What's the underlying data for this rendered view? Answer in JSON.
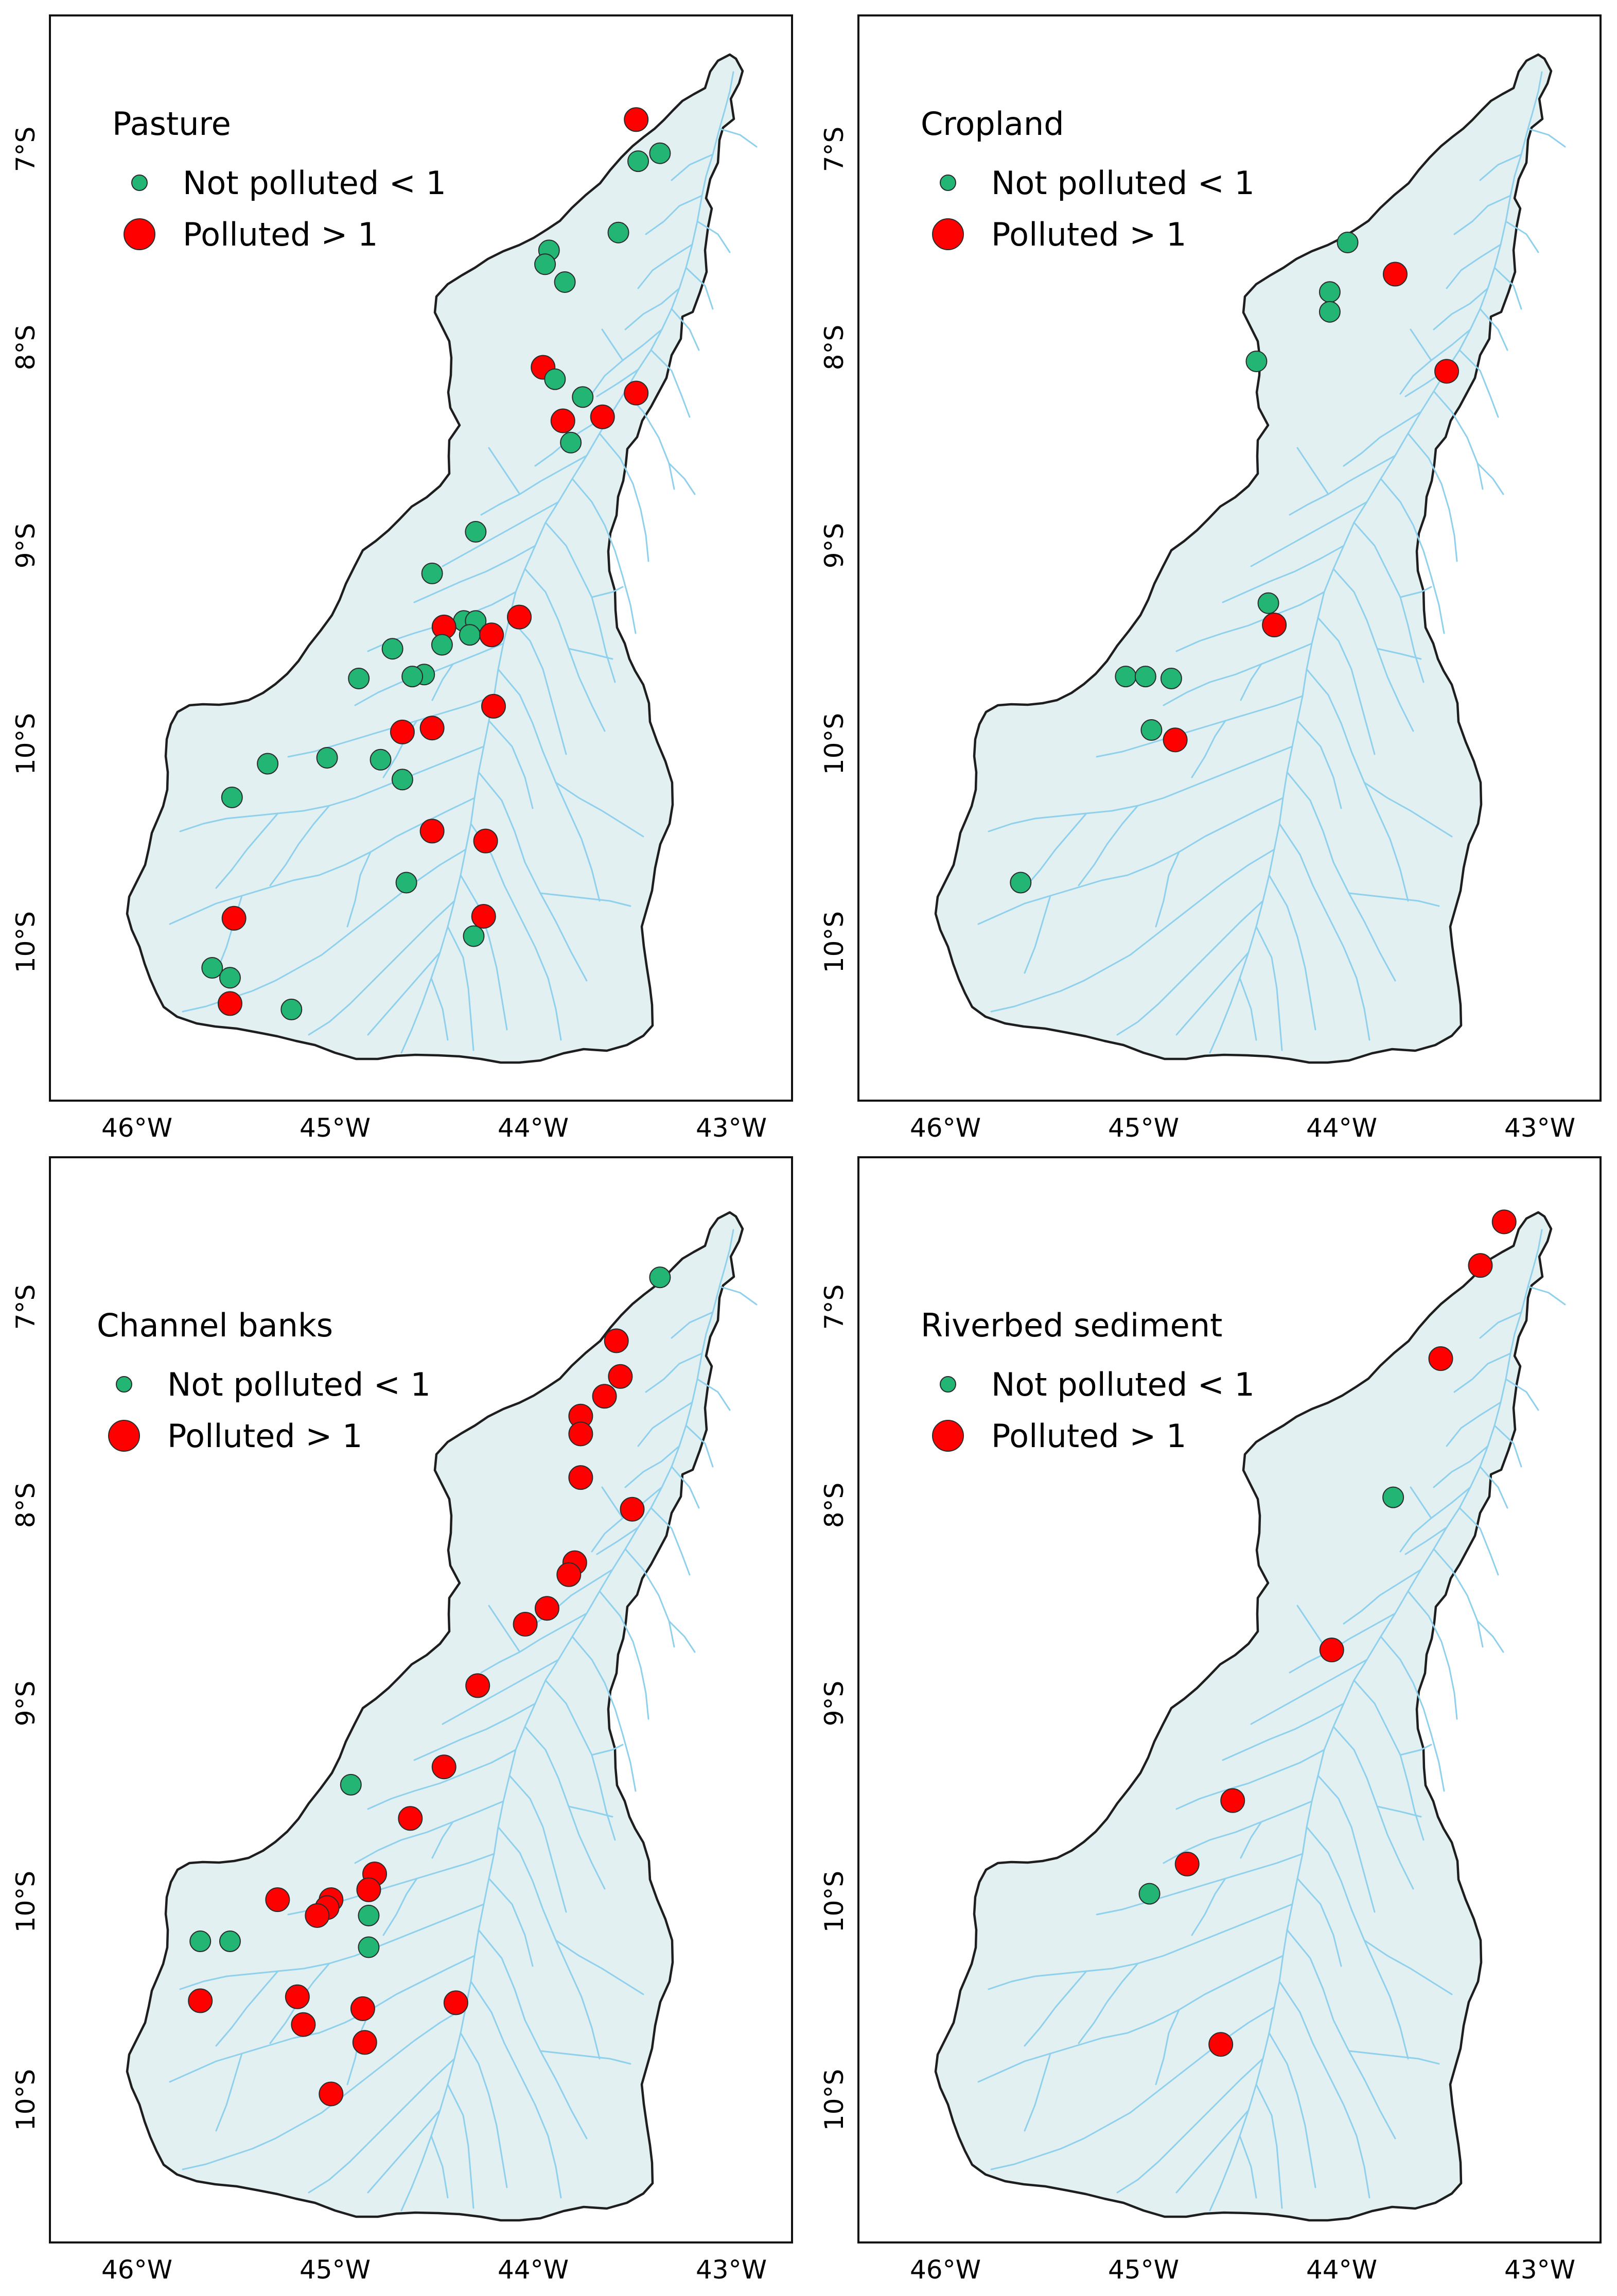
{
  "axis_labels": {
    "lon": [
      "46°W",
      "45°W",
      "44°W",
      "43°W"
    ],
    "lat": [
      "7°S",
      "8°S",
      "9°S",
      "10°S",
      "10°S"
    ]
  },
  "legend": {
    "not_polluted": "Not polluted < 1",
    "polluted": "Polluted > 1"
  },
  "colors": {
    "not_polluted": "#22b573",
    "polluted": "#ff0000",
    "basin_fill": "#e2f0f2",
    "river": "#8fd0ec",
    "outline": "#1e1e1e"
  },
  "panels": [
    {
      "title": "Pasture",
      "sites": [
        {
          "lon": -43.48,
          "lat": 6.85,
          "status": "polluted"
        },
        {
          "lon": -43.47,
          "lat": 7.06,
          "status": "not_polluted"
        },
        {
          "lon": -43.36,
          "lat": 7.02,
          "status": "not_polluted"
        },
        {
          "lon": -43.57,
          "lat": 7.42,
          "status": "not_polluted"
        },
        {
          "lon": -43.92,
          "lat": 7.51,
          "status": "not_polluted"
        },
        {
          "lon": -43.94,
          "lat": 7.58,
          "status": "not_polluted"
        },
        {
          "lon": -43.84,
          "lat": 7.67,
          "status": "not_polluted"
        },
        {
          "lon": -43.95,
          "lat": 8.1,
          "status": "polluted"
        },
        {
          "lon": -43.89,
          "lat": 8.16,
          "status": "not_polluted"
        },
        {
          "lon": -43.75,
          "lat": 8.25,
          "status": "not_polluted"
        },
        {
          "lon": -43.48,
          "lat": 8.23,
          "status": "polluted"
        },
        {
          "lon": -43.85,
          "lat": 8.37,
          "status": "polluted"
        },
        {
          "lon": -43.65,
          "lat": 8.35,
          "status": "polluted"
        },
        {
          "lon": -43.81,
          "lat": 8.48,
          "status": "not_polluted"
        },
        {
          "lon": -44.29,
          "lat": 8.93,
          "status": "not_polluted"
        },
        {
          "lon": -44.51,
          "lat": 9.14,
          "status": "not_polluted"
        },
        {
          "lon": -44.35,
          "lat": 9.38,
          "status": "not_polluted"
        },
        {
          "lon": -44.29,
          "lat": 9.38,
          "status": "not_polluted"
        },
        {
          "lon": -44.45,
          "lat": 9.41,
          "status": "polluted"
        },
        {
          "lon": -44.32,
          "lat": 9.45,
          "status": "not_polluted"
        },
        {
          "lon": -44.21,
          "lat": 9.45,
          "status": "polluted"
        },
        {
          "lon": -44.07,
          "lat": 9.36,
          "status": "polluted"
        },
        {
          "lon": -44.46,
          "lat": 9.5,
          "status": "not_polluted"
        },
        {
          "lon": -44.71,
          "lat": 9.52,
          "status": "not_polluted"
        },
        {
          "lon": -44.55,
          "lat": 9.65,
          "status": "not_polluted"
        },
        {
          "lon": -44.61,
          "lat": 9.66,
          "status": "not_polluted"
        },
        {
          "lon": -44.88,
          "lat": 9.67,
          "status": "not_polluted"
        },
        {
          "lon": -44.2,
          "lat": 9.81,
          "status": "polluted"
        },
        {
          "lon": -44.51,
          "lat": 9.92,
          "status": "polluted"
        },
        {
          "lon": -44.66,
          "lat": 9.94,
          "status": "polluted"
        },
        {
          "lon": -45.04,
          "lat": 10.07,
          "status": "not_polluted"
        },
        {
          "lon": -45.34,
          "lat": 10.1,
          "status": "not_polluted"
        },
        {
          "lon": -44.77,
          "lat": 10.08,
          "status": "not_polluted"
        },
        {
          "lon": -44.66,
          "lat": 10.18,
          "status": "not_polluted"
        },
        {
          "lon": -45.52,
          "lat": 10.27,
          "status": "not_polluted"
        },
        {
          "lon": -44.51,
          "lat": 10.44,
          "status": "polluted"
        },
        {
          "lon": -44.24,
          "lat": 10.49,
          "status": "polluted"
        },
        {
          "lon": -44.64,
          "lat": 10.7,
          "status": "not_polluted"
        },
        {
          "lon": -45.51,
          "lat": 10.88,
          "status": "polluted"
        },
        {
          "lon": -44.25,
          "lat": 10.87,
          "status": "polluted"
        },
        {
          "lon": -44.3,
          "lat": 10.97,
          "status": "not_polluted"
        },
        {
          "lon": -45.62,
          "lat": 11.13,
          "status": "not_polluted"
        },
        {
          "lon": -45.53,
          "lat": 11.18,
          "status": "not_polluted"
        },
        {
          "lon": -45.53,
          "lat": 11.31,
          "status": "polluted"
        },
        {
          "lon": -45.22,
          "lat": 11.34,
          "status": "not_polluted"
        }
      ]
    },
    {
      "title": "Cropland",
      "sites": [
        {
          "lon": -43.97,
          "lat": 7.47,
          "status": "not_polluted"
        },
        {
          "lon": -43.73,
          "lat": 7.63,
          "status": "polluted"
        },
        {
          "lon": -44.06,
          "lat": 7.72,
          "status": "not_polluted"
        },
        {
          "lon": -44.06,
          "lat": 7.82,
          "status": "not_polluted"
        },
        {
          "lon": -44.43,
          "lat": 8.07,
          "status": "not_polluted"
        },
        {
          "lon": -43.47,
          "lat": 8.12,
          "status": "polluted"
        },
        {
          "lon": -44.37,
          "lat": 9.29,
          "status": "not_polluted"
        },
        {
          "lon": -44.34,
          "lat": 9.4,
          "status": "polluted"
        },
        {
          "lon": -45.09,
          "lat": 9.66,
          "status": "not_polluted"
        },
        {
          "lon": -44.99,
          "lat": 9.66,
          "status": "not_polluted"
        },
        {
          "lon": -44.86,
          "lat": 9.67,
          "status": "not_polluted"
        },
        {
          "lon": -44.96,
          "lat": 9.93,
          "status": "not_polluted"
        },
        {
          "lon": -44.84,
          "lat": 9.98,
          "status": "polluted"
        },
        {
          "lon": -45.62,
          "lat": 10.7,
          "status": "not_polluted"
        }
      ]
    },
    {
      "title": "Channel banks",
      "sites": [
        {
          "lon": -43.36,
          "lat": 6.85,
          "status": "not_polluted"
        },
        {
          "lon": -43.58,
          "lat": 7.17,
          "status": "polluted"
        },
        {
          "lon": -43.56,
          "lat": 7.35,
          "status": "polluted"
        },
        {
          "lon": -43.64,
          "lat": 7.45,
          "status": "polluted"
        },
        {
          "lon": -43.76,
          "lat": 7.55,
          "status": "polluted"
        },
        {
          "lon": -43.76,
          "lat": 7.64,
          "status": "polluted"
        },
        {
          "lon": -43.76,
          "lat": 7.86,
          "status": "polluted"
        },
        {
          "lon": -43.5,
          "lat": 8.02,
          "status": "polluted"
        },
        {
          "lon": -43.79,
          "lat": 8.29,
          "status": "polluted"
        },
        {
          "lon": -43.82,
          "lat": 8.35,
          "status": "polluted"
        },
        {
          "lon": -43.93,
          "lat": 8.52,
          "status": "polluted"
        },
        {
          "lon": -44.04,
          "lat": 8.6,
          "status": "polluted"
        },
        {
          "lon": -44.28,
          "lat": 8.91,
          "status": "polluted"
        },
        {
          "lon": -44.45,
          "lat": 9.32,
          "status": "polluted"
        },
        {
          "lon": -44.92,
          "lat": 9.41,
          "status": "not_polluted"
        },
        {
          "lon": -44.62,
          "lat": 9.58,
          "status": "polluted"
        },
        {
          "lon": -44.8,
          "lat": 9.86,
          "status": "polluted"
        },
        {
          "lon": -44.83,
          "lat": 9.94,
          "status": "polluted"
        },
        {
          "lon": -45.29,
          "lat": 9.99,
          "status": "polluted"
        },
        {
          "lon": -45.02,
          "lat": 9.99,
          "status": "polluted"
        },
        {
          "lon": -45.04,
          "lat": 10.03,
          "status": "polluted"
        },
        {
          "lon": -45.09,
          "lat": 10.07,
          "status": "polluted"
        },
        {
          "lon": -44.83,
          "lat": 10.07,
          "status": "not_polluted"
        },
        {
          "lon": -45.68,
          "lat": 10.2,
          "status": "not_polluted"
        },
        {
          "lon": -45.53,
          "lat": 10.2,
          "status": "not_polluted"
        },
        {
          "lon": -44.83,
          "lat": 10.23,
          "status": "not_polluted"
        },
        {
          "lon": -45.68,
          "lat": 10.5,
          "status": "polluted"
        },
        {
          "lon": -45.19,
          "lat": 10.48,
          "status": "polluted"
        },
        {
          "lon": -44.39,
          "lat": 10.51,
          "status": "polluted"
        },
        {
          "lon": -44.86,
          "lat": 10.54,
          "status": "polluted"
        },
        {
          "lon": -45.16,
          "lat": 10.62,
          "status": "polluted"
        },
        {
          "lon": -44.85,
          "lat": 10.71,
          "status": "polluted"
        },
        {
          "lon": -45.02,
          "lat": 10.97,
          "status": "polluted"
        }
      ]
    },
    {
      "title": "Riverbed sediment",
      "sites": [
        {
          "lon": -43.18,
          "lat": 6.57,
          "status": "polluted"
        },
        {
          "lon": -43.3,
          "lat": 6.79,
          "status": "polluted"
        },
        {
          "lon": -43.5,
          "lat": 7.26,
          "status": "polluted"
        },
        {
          "lon": -43.74,
          "lat": 7.96,
          "status": "not_polluted"
        },
        {
          "lon": -44.05,
          "lat": 8.73,
          "status": "polluted"
        },
        {
          "lon": -44.55,
          "lat": 9.49,
          "status": "polluted"
        },
        {
          "lon": -44.78,
          "lat": 9.81,
          "status": "polluted"
        },
        {
          "lon": -44.97,
          "lat": 9.96,
          "status": "not_polluted"
        },
        {
          "lon": -44.61,
          "lat": 10.72,
          "status": "polluted"
        }
      ]
    }
  ]
}
